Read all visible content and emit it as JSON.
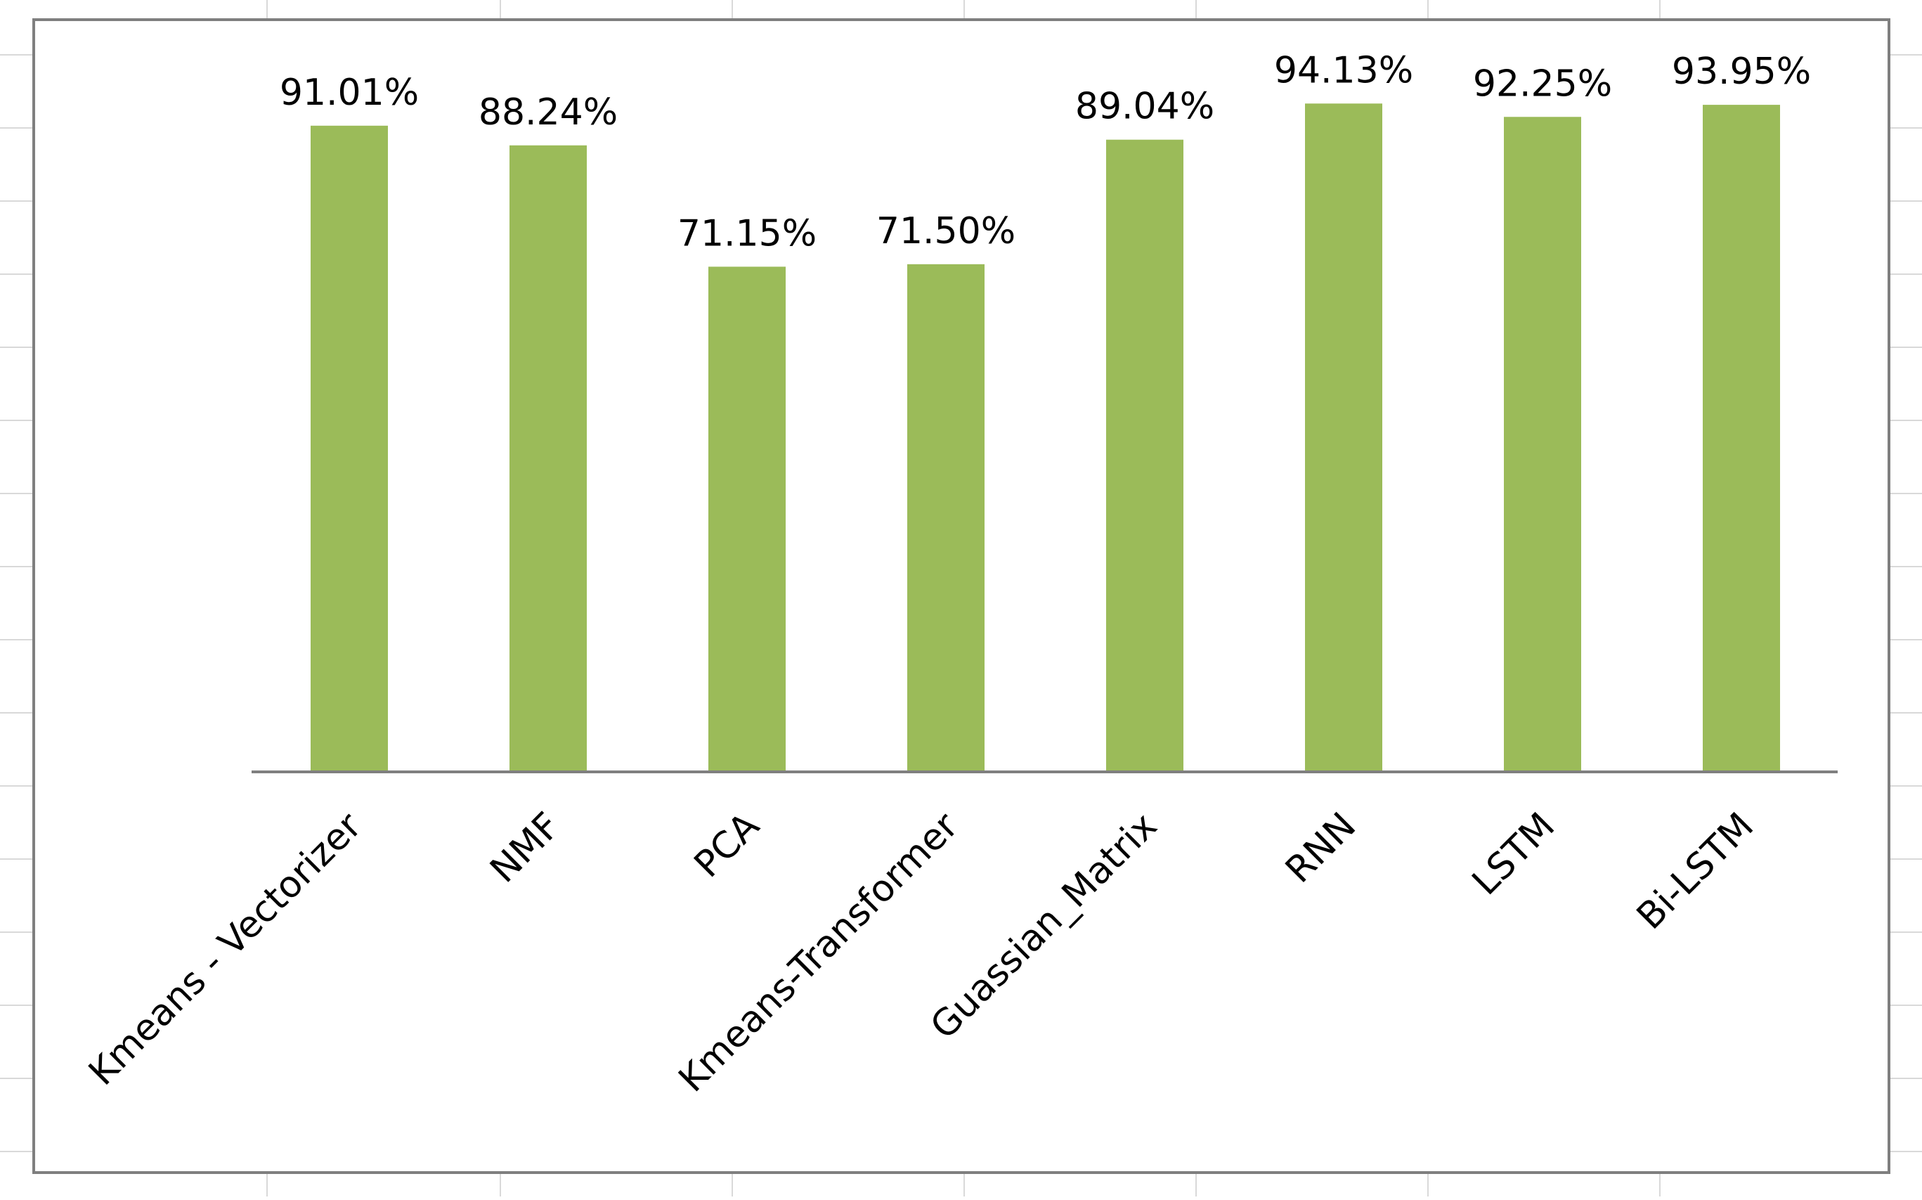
{
  "chart_data": {
    "type": "bar",
    "title": "",
    "xlabel": "",
    "ylabel": "",
    "categories": [
      "Kmeans - Vectorizer",
      "NMF",
      "PCA",
      "Kmeans-Transformer",
      "Guassian_Matrix",
      "RNN",
      "LSTM",
      "Bi-LSTM"
    ],
    "values": [
      91.01,
      88.24,
      71.15,
      71.5,
      89.04,
      94.13,
      92.25,
      93.95
    ],
    "data_labels": [
      "91.01%",
      "88.24%",
      "71.15%",
      "71.50%",
      "89.04%",
      "94.13%",
      "92.25%",
      "93.95%"
    ],
    "ylim": [
      0,
      100
    ],
    "grid": false,
    "legend": "none",
    "bar_color": "#9BBB59",
    "axis_color": "#7F7F7F",
    "frame_color": "#7F7F7F",
    "label_color": "#000000"
  }
}
